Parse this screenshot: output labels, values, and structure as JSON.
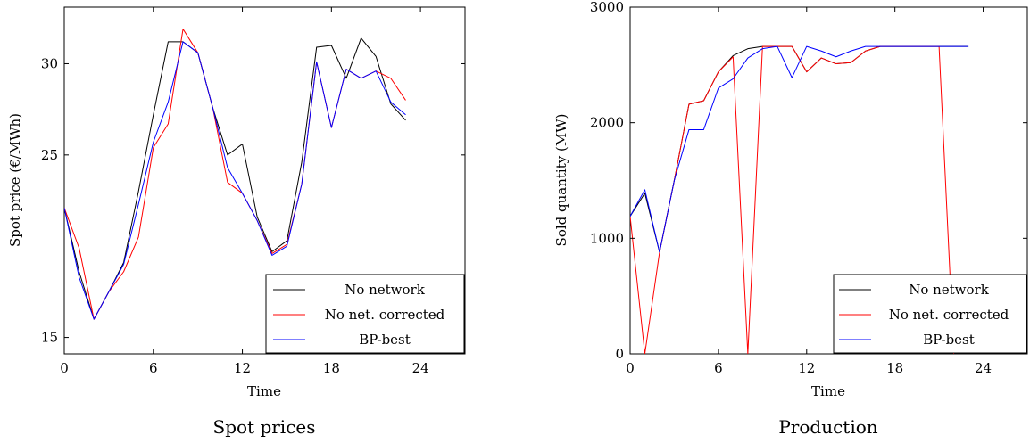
{
  "chart_data": [
    {
      "type": "line",
      "caption": "Spot prices",
      "xlabel": "Time",
      "ylabel": "Spot price (€/MWh)",
      "xlim": [
        0,
        27
      ],
      "ylim": [
        14.1,
        33.1
      ],
      "xticks": [
        0,
        6,
        12,
        18,
        24
      ],
      "yticks": [
        15,
        25,
        30
      ],
      "grid": false,
      "legend_position": "bottom-right",
      "x": [
        0,
        1,
        2,
        3,
        4,
        5,
        6,
        7,
        8,
        9,
        10,
        11,
        12,
        13,
        14,
        15,
        16,
        17,
        18,
        19,
        20,
        21,
        22,
        23
      ],
      "series": [
        {
          "name": "No network",
          "color": "#000000",
          "values": [
            22.1,
            18.6,
            16.0,
            17.5,
            19.1,
            23.0,
            27.2,
            31.2,
            31.2,
            30.6,
            27.6,
            25.0,
            25.6,
            21.6,
            19.7,
            20.3,
            24.6,
            30.9,
            31.0,
            29.2,
            31.4,
            30.4,
            27.8,
            26.9
          ]
        },
        {
          "name": "No net. corrected",
          "color": "#ff0000",
          "values": [
            22.1,
            19.9,
            16.0,
            17.5,
            18.6,
            20.5,
            25.4,
            26.7,
            31.9,
            30.6,
            27.6,
            23.5,
            22.9,
            21.4,
            19.6,
            20.1,
            23.4,
            30.1,
            26.5,
            29.7,
            29.2,
            29.6,
            29.2,
            28.0
          ]
        },
        {
          "name": "BP-best",
          "color": "#0000ff",
          "values": [
            22.1,
            18.3,
            16.0,
            17.5,
            19.0,
            22.3,
            25.7,
            27.9,
            31.2,
            30.6,
            27.6,
            24.3,
            22.9,
            21.4,
            19.5,
            20.0,
            23.4,
            30.1,
            26.5,
            29.7,
            29.2,
            29.6,
            27.9,
            27.2
          ]
        }
      ]
    },
    {
      "type": "line",
      "caption": "Production",
      "xlabel": "Time",
      "ylabel": "Sold quantity (MW)",
      "xlim": [
        0,
        27
      ],
      "ylim": [
        0,
        3000
      ],
      "xticks": [
        0,
        6,
        12,
        18,
        24
      ],
      "yticks": [
        0,
        1000,
        2000,
        3000
      ],
      "grid": false,
      "legend_position": "bottom-right",
      "x": [
        0,
        1,
        2,
        3,
        4,
        5,
        6,
        7,
        8,
        9,
        10,
        11,
        12,
        13,
        14,
        15,
        16,
        17,
        18,
        19,
        20,
        21,
        22,
        23
      ],
      "series": [
        {
          "name": "No network",
          "color": "#000000",
          "values": [
            1190,
            1390,
            880,
            1500,
            2160,
            2190,
            2440,
            2580,
            2640,
            2660,
            2660,
            2660,
            2440,
            2560,
            2510,
            2520,
            2620,
            2660,
            2660,
            2660,
            2660,
            2660,
            2660,
            2660
          ]
        },
        {
          "name": "No net. corrected",
          "color": "#ff0000",
          "values": [
            1190,
            0,
            880,
            1500,
            2160,
            2190,
            2440,
            2570,
            0,
            2660,
            2660,
            2660,
            2440,
            2560,
            2510,
            2520,
            2620,
            2660,
            2660,
            2660,
            2660,
            2660,
            0,
            null
          ]
        },
        {
          "name": "BP-best",
          "color": "#0000ff",
          "values": [
            1190,
            1420,
            880,
            1500,
            1940,
            1940,
            2300,
            2380,
            2560,
            2640,
            2660,
            2390,
            2660,
            2620,
            2570,
            2620,
            2660,
            2660,
            2660,
            2660,
            2660,
            2660,
            2660,
            2660
          ]
        }
      ]
    }
  ]
}
